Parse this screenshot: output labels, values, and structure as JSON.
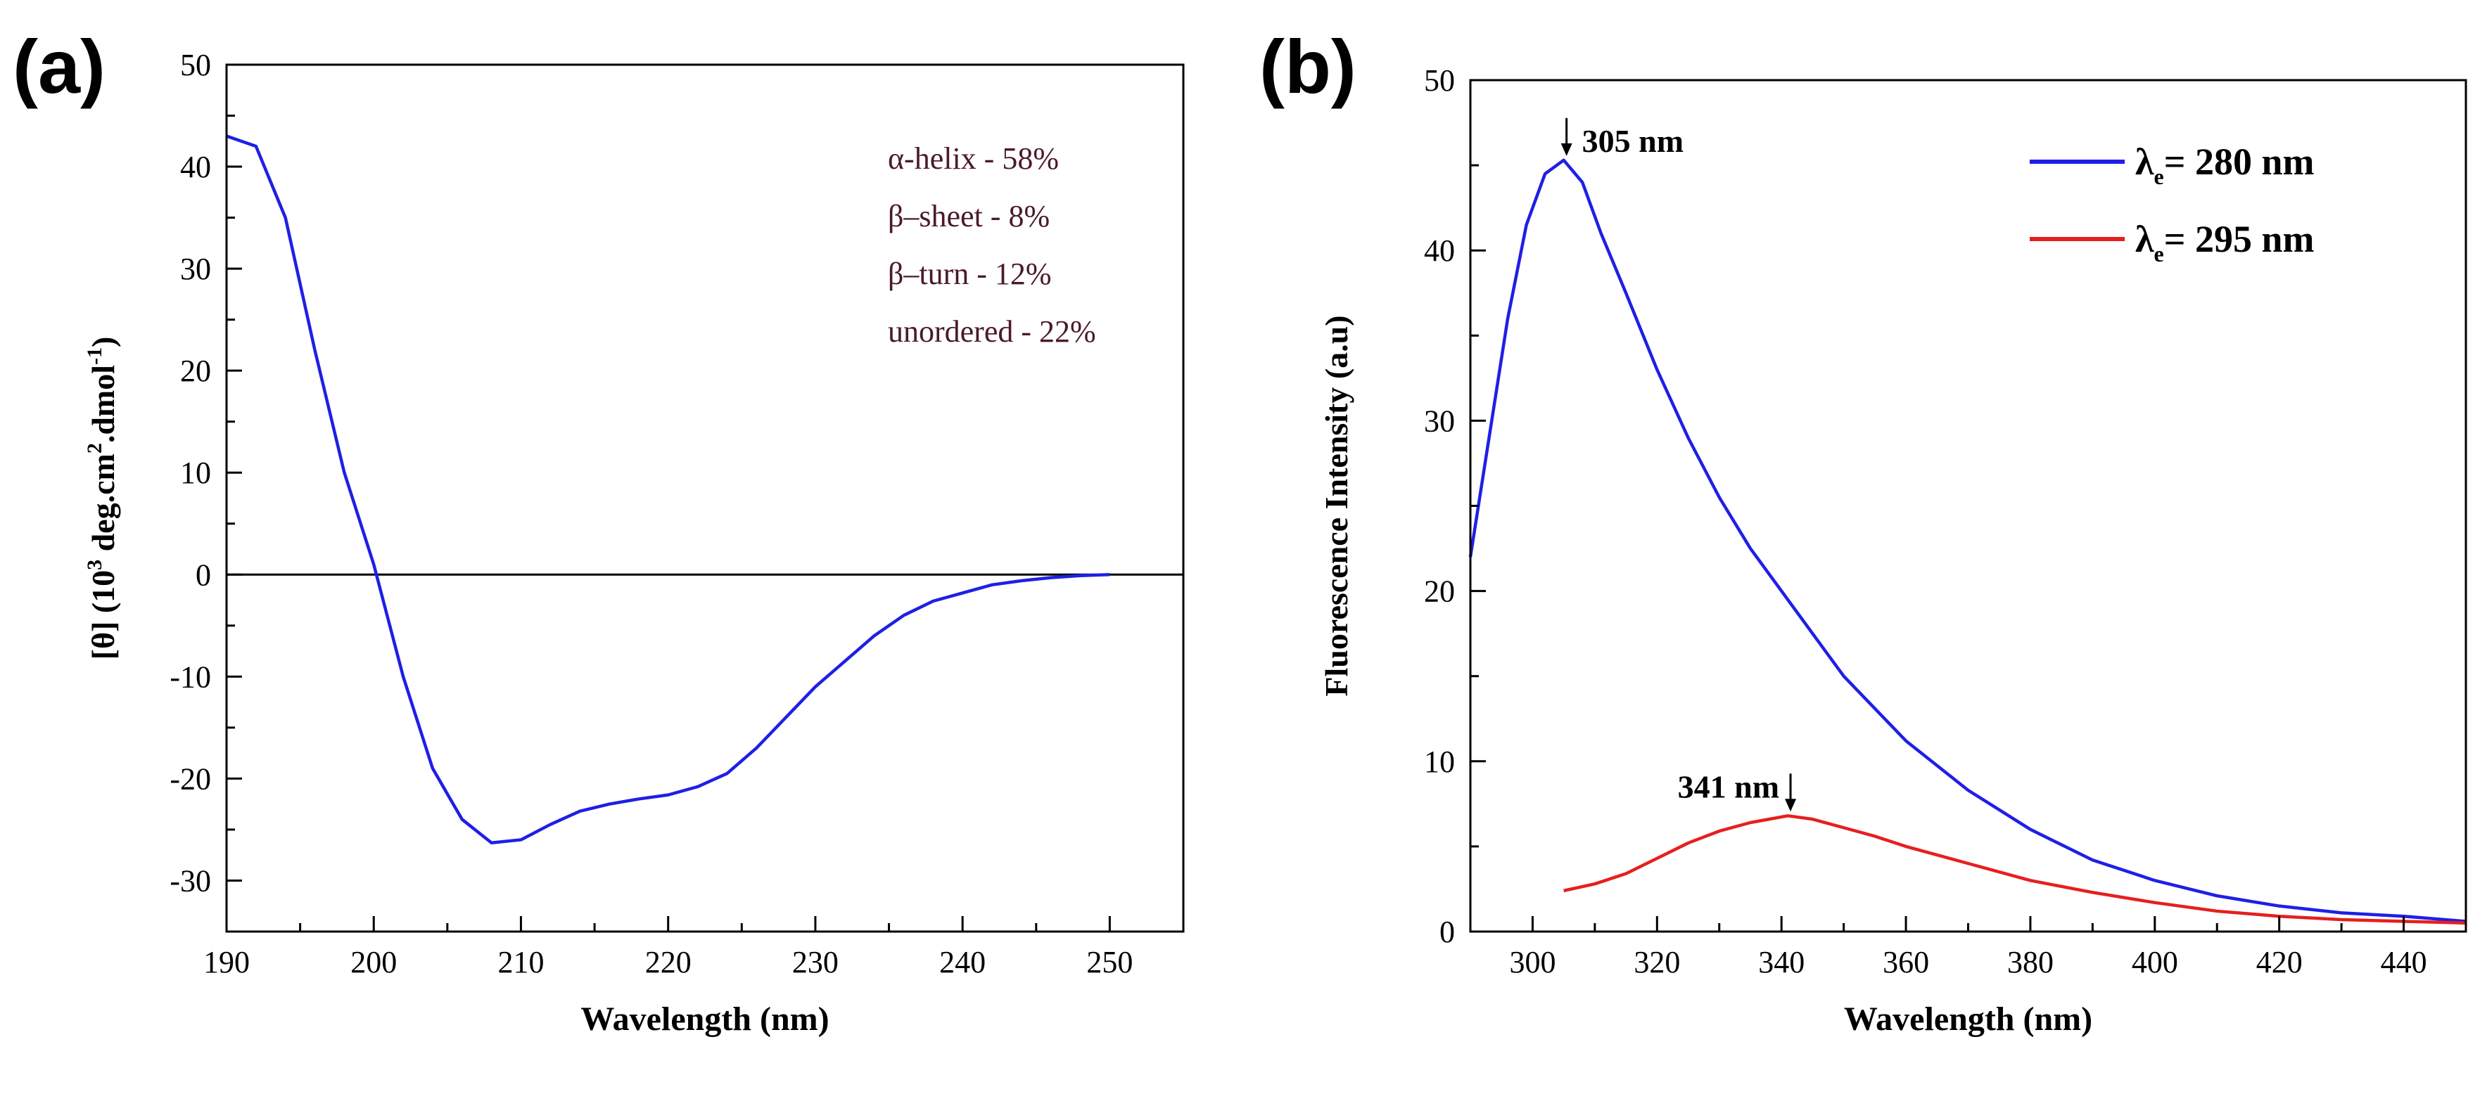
{
  "figure": {
    "panel_a_label": "(a)",
    "panel_b_label": "(b)"
  },
  "colors": {
    "blue_series": "#1f1fe6",
    "red_series": "#e61f1f",
    "annotation_text": "#4a1a2a"
  },
  "chart_data": [
    {
      "type": "line",
      "panel": "a",
      "xlabel": "Wavelength (nm)",
      "ylabel_parts": [
        "[θ] (10",
        "3",
        " deg.cm",
        "2",
        ".dmol",
        "-1",
        ")"
      ],
      "xlim": [
        190,
        255
      ],
      "ylim": [
        -35,
        50
      ],
      "xticks": [
        190,
        200,
        210,
        220,
        230,
        240,
        250
      ],
      "yticks": [
        -30,
        -20,
        -10,
        0,
        10,
        20,
        30,
        40,
        50
      ],
      "zero_line": true,
      "annotations": [
        "α-helix - 58%",
        "β–sheet - 8%",
        "β–turn - 12%",
        "unordered - 22%"
      ],
      "series": [
        {
          "color": "#1f1fe6",
          "x": [
            190,
            192,
            194,
            196,
            198,
            200,
            202,
            204,
            206,
            208,
            210,
            212,
            214,
            216,
            218,
            220,
            222,
            224,
            226,
            228,
            230,
            232,
            234,
            236,
            238,
            240,
            242,
            244,
            246,
            248,
            250
          ],
          "y": [
            43,
            42,
            35,
            22,
            10,
            1,
            -10,
            -19,
            -24,
            -26.3,
            -26,
            -24.5,
            -23.2,
            -22.5,
            -22,
            -21.6,
            -20.8,
            -19.5,
            -17,
            -14,
            -11,
            -8.5,
            -6,
            -4,
            -2.6,
            -1.8,
            -1,
            -0.6,
            -0.3,
            -0.1,
            0
          ]
        }
      ]
    },
    {
      "type": "line",
      "panel": "b",
      "xlabel": "Wavelength (nm)",
      "ylabel": "Fluorescence Intensity (a.u)",
      "xlim": [
        290,
        450
      ],
      "ylim": [
        0,
        50
      ],
      "xticks": [
        300,
        320,
        340,
        360,
        380,
        400,
        420,
        440
      ],
      "yticks": [
        0,
        10,
        20,
        30,
        40,
        50
      ],
      "legend_position": "top-right",
      "peaks": [
        {
          "label": "305 nm",
          "x": 305,
          "y": 45.3
        },
        {
          "label": "341 nm",
          "x": 341,
          "y": 6.8
        }
      ],
      "series": [
        {
          "legend_symbol": "λ",
          "legend_sub": "e",
          "legend_text": "= 280 nm",
          "color": "#1f1fe6",
          "x": [
            290,
            293,
            296,
            299,
            302,
            305,
            308,
            311,
            315,
            320,
            325,
            330,
            335,
            340,
            345,
            350,
            360,
            370,
            380,
            390,
            400,
            410,
            420,
            430,
            440,
            450
          ],
          "y": [
            22,
            29,
            36,
            41.5,
            44.5,
            45.3,
            44,
            41,
            37.5,
            33,
            29,
            25.5,
            22.5,
            20,
            17.5,
            15,
            11.2,
            8.3,
            6,
            4.2,
            3,
            2.1,
            1.5,
            1.1,
            0.9,
            0.6
          ]
        },
        {
          "legend_symbol": "λ",
          "legend_sub": "e",
          "legend_text": "= 295 nm",
          "color": "#e61f1f",
          "x": [
            305,
            310,
            315,
            320,
            325,
            330,
            335,
            341,
            345,
            350,
            355,
            360,
            370,
            380,
            390,
            400,
            410,
            420,
            430,
            440,
            450
          ],
          "y": [
            2.4,
            2.8,
            3.4,
            4.3,
            5.2,
            5.9,
            6.4,
            6.8,
            6.6,
            6.1,
            5.6,
            5,
            4,
            3,
            2.3,
            1.7,
            1.2,
            0.9,
            0.7,
            0.6,
            0.5
          ]
        }
      ]
    }
  ]
}
